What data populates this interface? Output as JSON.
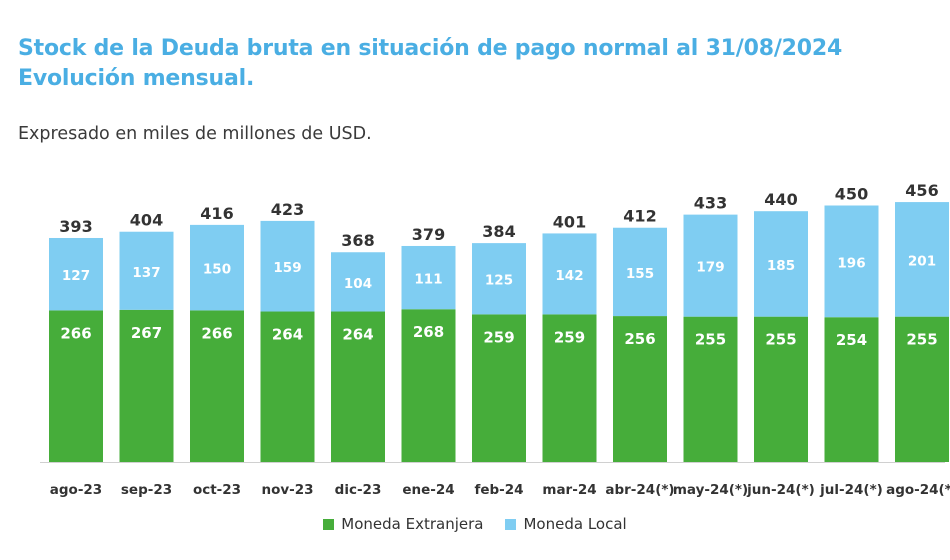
{
  "chart_data": {
    "type": "bar",
    "stacked": true,
    "title_line1": "Stock de la Deuda bruta en situación de pago normal al 31/08/2024",
    "title_line2": "Evolución mensual.",
    "subtitle": "Expresado en miles de millones de USD.",
    "categories": [
      "ago-23",
      "sep-23",
      "oct-23",
      "nov-23",
      "dic-23",
      "ene-24",
      "feb-24",
      "mar-24",
      "abr-24(*)",
      "may-24(*)",
      "jun-24(*)",
      "jul-24(*)",
      "ago-24(*)"
    ],
    "series": [
      {
        "name": "Moneda Extranjera",
        "color": "#46ad3a",
        "values": [
          266,
          267,
          266,
          264,
          264,
          268,
          259,
          259,
          256,
          255,
          255,
          254,
          255
        ]
      },
      {
        "name": "Moneda Local",
        "color": "#7fcdf2",
        "values": [
          127,
          137,
          150,
          159,
          104,
          111,
          125,
          142,
          155,
          179,
          185,
          196,
          201
        ]
      }
    ],
    "totals": [
      393,
      404,
      416,
      423,
      368,
      379,
      384,
      401,
      412,
      433,
      440,
      450,
      456
    ],
    "ylim": [
      0,
      460
    ],
    "grid": false,
    "legend_position": "bottom"
  }
}
